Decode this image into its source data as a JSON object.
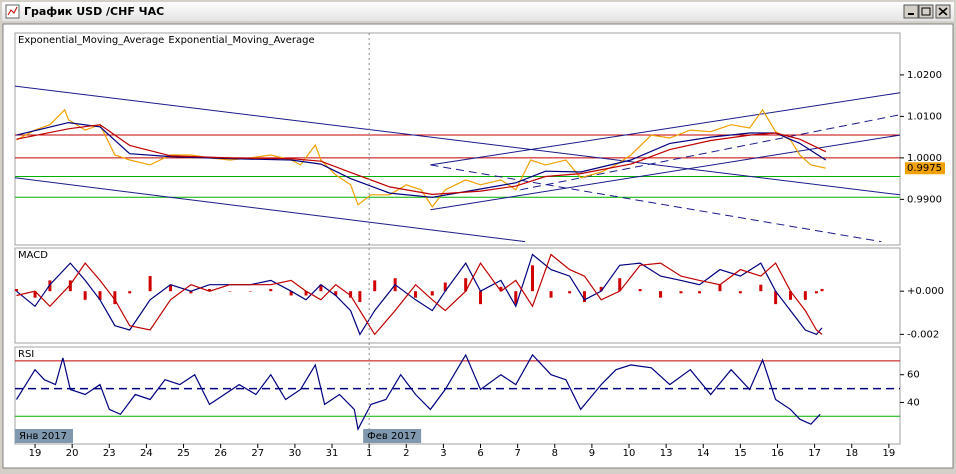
{
  "window": {
    "title": "График USD /CHF ЧАС"
  },
  "chart_data": [
    {
      "type": "line",
      "ylim": [
        0.979,
        1.0301
      ],
      "yticks": [
        {
          "value": 1.02,
          "label": "1.0200"
        },
        {
          "value": 1.01,
          "label": "1.0100"
        },
        {
          "value": 1.0,
          "label": "1.0000"
        },
        {
          "value": 0.99,
          "label": "0.9900"
        }
      ],
      "series": [
        {
          "color": "#f0a000",
          "x": [
            -0.5,
            0,
            0.4,
            0.8,
            0.9,
            1.35,
            1.75,
            2.15,
            2.55,
            3.1,
            3.65,
            4.2,
            4.7,
            5.25,
            5.8,
            6.35,
            6.9,
            7.15,
            7.55,
            7.7,
            8.1,
            8.5,
            8.7,
            9.05,
            9.55,
            10,
            10.4,
            10.7,
            11.05,
            11.6,
            12,
            12.55,
            12.95,
            13.35,
            13.75,
            14.3,
            14.7,
            15.25,
            15.65,
            16.05,
            16.6,
            17.1,
            17.65,
            18.2,
            18.75,
            19.25,
            19.6,
            19.95,
            20.35,
            20.6,
            20.9,
            21.3
          ],
          "values": [
            1.0043,
            1.0067,
            1.008,
            1.0116,
            1.0092,
            1.0067,
            1.008,
            1.0007,
            0.9995,
            0.9983,
            1.0007,
            1.0007,
            1.0,
            0.9995,
            1.0,
            1.0007,
            0.9995,
            0.9983,
            1.0031,
            0.9995,
            0.9959,
            0.9935,
            0.9887,
            0.9911,
            0.9911,
            0.9935,
            0.9923,
            0.9882,
            0.9923,
            0.9947,
            0.9935,
            0.9947,
            0.9923,
            0.9995,
            0.9983,
            0.9995,
            0.9952,
            0.9966,
            0.9983,
            1.0007,
            1.0055,
            1.0048,
            1.0067,
            1.0063,
            1.008,
            1.0072,
            1.0116,
            1.0063,
            1.0043,
            1.0007,
            0.9983,
            0.9975
          ]
        },
        {
          "name": "Exponential_Moving_Average",
          "color": "#000080",
          "x": [
            -0.5,
            0.9,
            1.75,
            2.55,
            3.65,
            5.25,
            6.9,
            7.7,
            8.5,
            9.55,
            10.7,
            12,
            12.95,
            13.75,
            14.7,
            16.05,
            17.1,
            18.2,
            19.25,
            19.95,
            20.6,
            21.3
          ],
          "values": [
            1.0055,
            1.0085,
            1.0075,
            1.001,
            1.0003,
            0.9998,
            0.9995,
            0.9985,
            0.995,
            0.9915,
            0.9905,
            0.9925,
            0.994,
            0.9968,
            0.9966,
            0.9995,
            1.0035,
            1.005,
            1.006,
            1.006,
            1.0035,
            0.9995
          ]
        },
        {
          "name": "Exponential_Moving_Average",
          "color": "#c00000",
          "x": [
            -0.5,
            0.9,
            1.75,
            2.55,
            3.65,
            5.25,
            6.9,
            7.7,
            8.5,
            9.55,
            10.7,
            12,
            12.95,
            13.75,
            14.7,
            16.05,
            17.1,
            18.2,
            19.25,
            19.95,
            20.6,
            21.3
          ],
          "values": [
            1.0045,
            1.007,
            1.008,
            1.003,
            1.0005,
            1.0,
            0.9998,
            0.9992,
            0.9965,
            0.993,
            0.9912,
            0.992,
            0.9932,
            0.9955,
            0.9962,
            0.9985,
            1.002,
            1.0042,
            1.0055,
            1.006,
            1.0045,
            1.0015
          ]
        }
      ],
      "levels": [
        {
          "value": 1.0055,
          "color": "#c00000"
        },
        {
          "value": 1.0,
          "color": "#c00000"
        },
        {
          "value": 0.9955,
          "color": "#00b000"
        },
        {
          "value": 0.9905,
          "color": "#00b000"
        }
      ],
      "trend_color": "#1a1a8c",
      "trend_lines": [
        {
          "x": [
            -0.54,
            23.3
          ],
          "values": [
            1.0173,
            0.9911
          ],
          "dashed": false
        },
        {
          "x": [
            -0.54,
            13.2
          ],
          "values": [
            0.9952,
            0.9798
          ],
          "dashed": false
        },
        {
          "x": [
            10.65,
            22.8
          ],
          "values": [
            0.9983,
            0.9798
          ],
          "dashed": true
        },
        {
          "x": [
            10.65,
            23.3
          ],
          "values": [
            0.9983,
            1.0157
          ],
          "dashed": false
        },
        {
          "x": [
            10.65,
            23.3
          ],
          "values": [
            0.9875,
            1.0055
          ],
          "dashed": false
        },
        {
          "x": [
            13.07,
            23.3
          ],
          "values": [
            0.9923,
            1.0104
          ],
          "dashed": true
        }
      ]
    },
    {
      "type": "line",
      "title": "MACD",
      "ylim": [
        -0.0024,
        0.002
      ],
      "yticks": [
        {
          "value": 0,
          "label": "+0.000"
        },
        {
          "value": -0.002,
          "label": "-0.002"
        }
      ],
      "x": [
        -0.5,
        0,
        0.4,
        0.95,
        1.35,
        1.75,
        2.15,
        2.55,
        3.1,
        3.65,
        4.2,
        4.7,
        5.25,
        5.8,
        6.35,
        6.9,
        7.3,
        7.7,
        8.1,
        8.5,
        8.75,
        9.15,
        9.7,
        10.25,
        10.7,
        11.05,
        11.6,
        12,
        12.55,
        12.95,
        13.4,
        13.9,
        14.4,
        14.8,
        15.25,
        15.75,
        16.3,
        16.85,
        17.4,
        17.9,
        18.45,
        19,
        19.55,
        19.95,
        20.35,
        20.75,
        21.05,
        21.2
      ],
      "series": [
        {
          "type": "bar",
          "color": "#d00000",
          "values": [
            0.0001,
            -0.0003,
            0.0005,
            0.0005,
            -0.0004,
            -0.0004,
            -0.0006,
            -0.0001,
            0.0007,
            0.0003,
            -0.0001,
            0.0001,
            0,
            0,
            0.0001,
            -0.0002,
            -0.0002,
            0.0003,
            -0.0002,
            -0.0003,
            -0.0005,
            0.0005,
            0.0006,
            -0.0003,
            -0.0002,
            0.0004,
            0.0006,
            -0.0006,
            0.0002,
            -0.0006,
            0.0012,
            -0.0003,
            -0.0001,
            -0.0005,
            0.0002,
            0.0006,
            0.0001,
            -0.0003,
            -0.0001,
            -0.0001,
            0.0003,
            -0.0001,
            0.0003,
            -0.0006,
            -0.0004,
            -0.0004,
            -0.0001,
            0.0001
          ]
        },
        {
          "type": "line",
          "color": "#000080",
          "values": [
            0,
            -0.0007,
            0.0003,
            0.0013,
            0.0005,
            -0.0004,
            -0.0016,
            -0.0018,
            -0.0004,
            0.0003,
            0,
            0.0003,
            0.0003,
            0.0003,
            0.0005,
            0,
            -0.0004,
            0.0003,
            -0.0002,
            -0.0009,
            -0.002,
            -0.0009,
            0.0003,
            -0.0004,
            -0.0009,
            0,
            0.0013,
            0,
            0.0005,
            -0.0007,
            0.0017,
            0.001,
            0.0007,
            -0.0004,
            0,
            0.0012,
            0.0013,
            0.0007,
            0.0005,
            0.0003,
            0.001,
            0.0007,
            0.0013,
            0,
            -0.0009,
            -0.0018,
            -0.002,
            -0.0017
          ]
        },
        {
          "type": "line",
          "color": "#c00000",
          "values": [
            -0.0002,
            0,
            -0.0007,
            0.0003,
            0.0013,
            0.0005,
            -0.0004,
            -0.0016,
            -0.0018,
            -0.0004,
            0.0003,
            0,
            0.0003,
            0.0003,
            0.0003,
            0.0005,
            0,
            -0.0004,
            0.0003,
            -0.0002,
            -0.0009,
            -0.002,
            -0.0009,
            0.0003,
            -0.0004,
            -0.0009,
            0,
            0.0013,
            0,
            0.0005,
            -0.0007,
            0.0017,
            0.001,
            0.0007,
            -0.0004,
            0,
            0.0012,
            0.0013,
            0.0007,
            0.0005,
            0.0003,
            0.001,
            0.0007,
            0.0013,
            0,
            -0.0009,
            -0.0018,
            -0.002
          ]
        }
      ]
    },
    {
      "type": "line",
      "title": "RSI",
      "ylim": [
        10,
        80
      ],
      "yticks": [
        60,
        40
      ],
      "xlim": [
        -0.54,
        23.3
      ],
      "xticks": [
        {
          "value": 0,
          "label": "19"
        },
        {
          "value": 1,
          "label": "20"
        },
        {
          "value": 2,
          "label": "23"
        },
        {
          "value": 3,
          "label": "24"
        },
        {
          "value": 4,
          "label": "25"
        },
        {
          "value": 5,
          "label": "26"
        },
        {
          "value": 6,
          "label": "27"
        },
        {
          "value": 7,
          "label": "30"
        },
        {
          "value": 8,
          "label": "31"
        },
        {
          "value": 9,
          "label": "1"
        },
        {
          "value": 10,
          "label": "2"
        },
        {
          "value": 11,
          "label": "3"
        },
        {
          "value": 12,
          "label": "6"
        },
        {
          "value": 13,
          "label": "7"
        },
        {
          "value": 14,
          "label": "8"
        },
        {
          "value": 15,
          "label": "9"
        },
        {
          "value": 16,
          "label": "10"
        },
        {
          "value": 17,
          "label": "13"
        },
        {
          "value": 18,
          "label": "14"
        },
        {
          "value": 19,
          "label": "15"
        },
        {
          "value": 20,
          "label": "16"
        },
        {
          "value": 21,
          "label": "17"
        },
        {
          "value": 22,
          "label": "18"
        },
        {
          "value": 23,
          "label": "19"
        }
      ],
      "month_markers": [
        {
          "value": 0,
          "label": "Янв 2017"
        },
        {
          "value": 9,
          "label": "Фев 2017"
        }
      ],
      "x": [
        -0.5,
        -0.25,
        0,
        0.25,
        0.55,
        0.75,
        0.95,
        1.35,
        1.75,
        2.0,
        2.3,
        2.7,
        3.1,
        3.5,
        3.9,
        4.3,
        4.7,
        5.1,
        5.5,
        5.95,
        6.35,
        6.75,
        7.15,
        7.55,
        7.8,
        8.2,
        8.6,
        8.7,
        9.05,
        9.45,
        9.85,
        10.25,
        10.65,
        11.05,
        11.6,
        12,
        12.55,
        12.95,
        13.4,
        13.9,
        14.3,
        14.7,
        15.25,
        15.65,
        16.05,
        16.6,
        17.1,
        17.65,
        18.2,
        18.75,
        19.25,
        19.6,
        19.95,
        20.35,
        20.6,
        20.9,
        21.15
      ],
      "series": [
        {
          "type": "line",
          "color": "#000080",
          "values": [
            42.1,
            52.9,
            63.6,
            56.4,
            52.9,
            72.1,
            49.3,
            45.7,
            52.9,
            35,
            31.4,
            45.7,
            42.1,
            56.4,
            52.9,
            60,
            38.6,
            45.7,
            52.9,
            45.7,
            60,
            42.1,
            49.3,
            67.1,
            38.6,
            45.7,
            35,
            20.7,
            38.6,
            42.1,
            60,
            45.7,
            35,
            49.3,
            74.3,
            49.3,
            60,
            52.9,
            74.3,
            60,
            56.4,
            35,
            52.9,
            63.6,
            67.1,
            65,
            52.9,
            63.6,
            45.7,
            63.6,
            49.3,
            70.7,
            42.1,
            35,
            27.9,
            24.3,
            31.4
          ]
        }
      ],
      "levels": [
        {
          "value": 70,
          "color": "#c00000"
        },
        {
          "value": 50,
          "color": "#000080",
          "dashed": true
        },
        {
          "value": 30,
          "color": "#00b000"
        }
      ]
    }
  ]
}
